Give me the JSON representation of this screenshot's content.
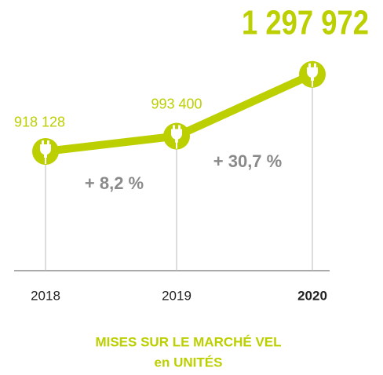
{
  "chart_data": {
    "type": "line",
    "title": "MISES SUR LE MARCHÉ VEL",
    "subtitle": "en UNITÉS",
    "categories": [
      "2018",
      "2019",
      "2020"
    ],
    "values": [
      918128,
      993400,
      1297972
    ],
    "value_labels": [
      "918 128",
      "993 400",
      "1 297 972"
    ],
    "annotations": [
      "+ 8,2 %",
      "+ 30,7 %"
    ],
    "color": "#bccf00",
    "annotation_color": "#8a8a8a",
    "ylim": [
      330000,
      1510000
    ]
  }
}
